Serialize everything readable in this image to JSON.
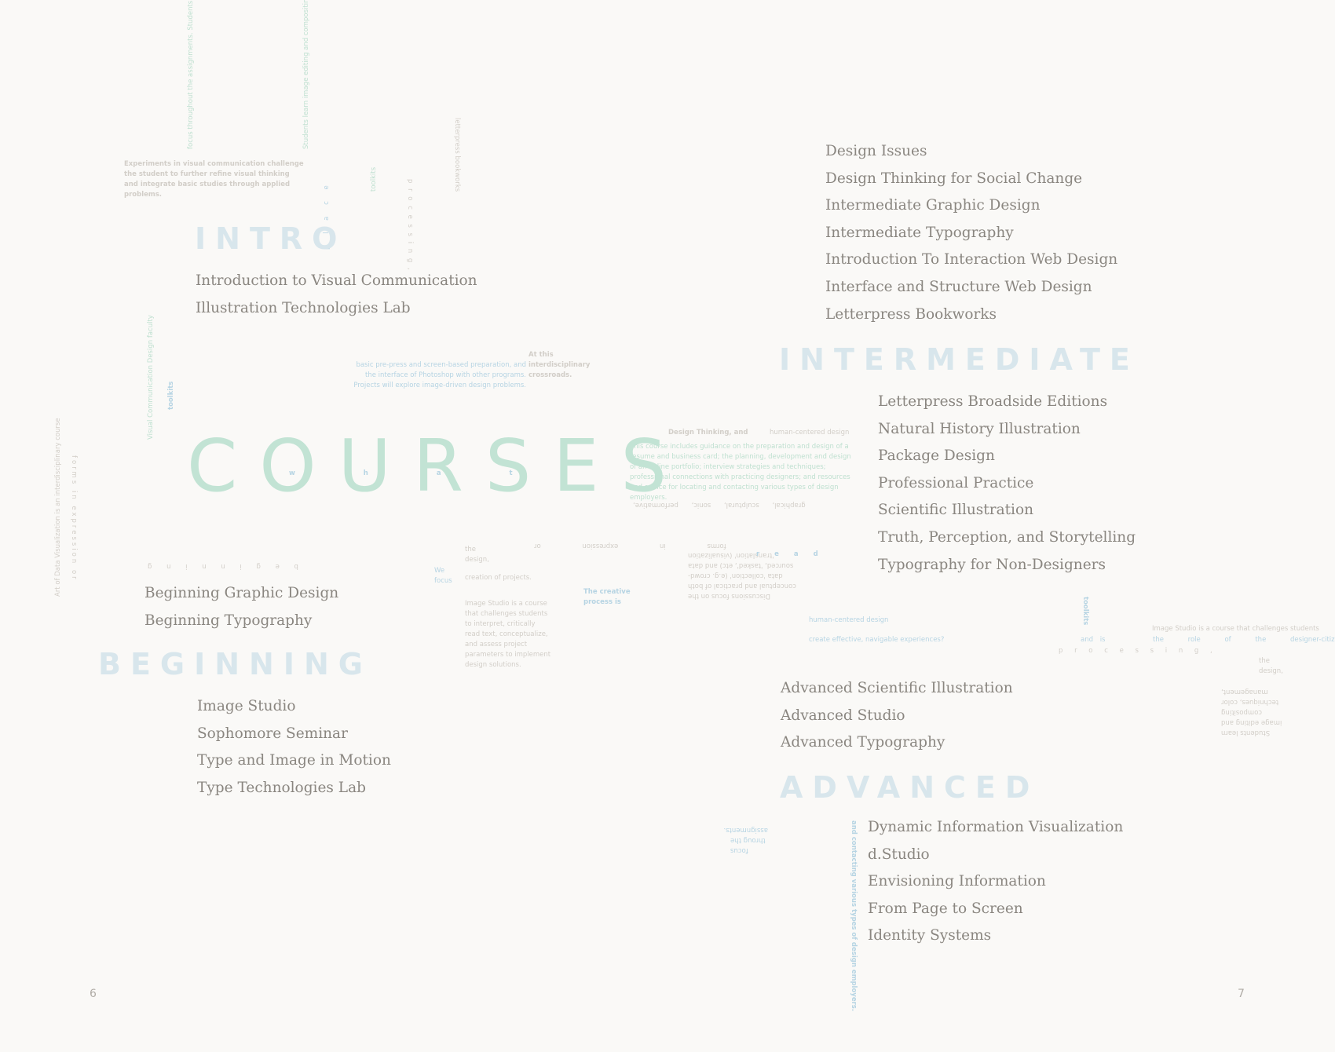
{
  "title": "COURSES",
  "sections": {
    "intro": {
      "heading": "INTRO",
      "courses": [
        "Introduction to Visual Communication",
        "Illustration Technologies Lab"
      ]
    },
    "beginning": {
      "heading": "BEGINNING",
      "courses_above": [
        "Beginning Graphic Design",
        "Beginning Typography"
      ],
      "courses_below": [
        "Image Studio",
        "Sophomore Seminar",
        "Type and Image in Motion",
        "Type Technologies Lab"
      ]
    },
    "intermediate": {
      "heading": "INTERMEDIATE",
      "courses_above": [
        "Design Issues",
        "Design Thinking for Social Change",
        "Intermediate Graphic Design",
        "Intermediate Typography",
        "Introduction To Interaction Web Design",
        "Interface and Structure Web Design",
        "Letterpress Bookworks"
      ],
      "courses_below": [
        "Letterpress Broadside Editions",
        "Natural History Illustration",
        "Package Design",
        "Professional Practice",
        "Scientific Illustration",
        "Truth, Perception, and Storytelling",
        "Typography for Non-Designers"
      ]
    },
    "advanced": {
      "heading": "ADVANCED",
      "courses_above": [
        "Advanced Scientific Illustration",
        "Advanced Studio",
        "Advanced Typography"
      ],
      "courses_below": [
        "Dynamic Information Visualization",
        "d.Studio",
        "Envisioning Information",
        "From Page to Screen",
        "Identity Systems"
      ]
    }
  },
  "page_numbers": {
    "left": "6",
    "right": "7"
  },
  "decorative_text": {
    "experiments": "Experiments in visual communication challenge the student to further refine visual thinking and integrate basic studies through applied problems.",
    "prepress": "basic pre-press and screen-based preparation, and the interface of Photoshop with other programs. Projects will explore image-driven design problems.",
    "at_this": "At this interdisciplinary crossroads.",
    "design_thinking": "Design Thinking, and",
    "human_centered": "human-centered design",
    "guidance": "This course includes guidance on the preparation and design of a resume and business card; the planning, development and design of an online portfolio; interview strategies and techniques; professional connections with practicing designers; and resources and advice for locating and contacting various types of design employers.",
    "media_list": "graphical, sculptural, sonic, performative,",
    "image_studio_short": "Image Studio is a course that challenges students to interpret, critically read text, conceptualize, and assess project parameters to implement design solutions.",
    "the_design": "the design,",
    "creation": "creation of projects.",
    "we_focus": "We focus",
    "creative_process": "The creative process is",
    "navigable": "create effective, navigable experiences?",
    "image_studio_long": "Image Studio is a course that challenges students",
    "designer_citizen": "the role of the designer-citizen?",
    "and_is": "and is",
    "toolkits": "toolkits",
    "process": "p r o c e s s i n g ,",
    "discussions": "Discussions focus on the conceptual and practical of both data 'collection' (e.g. crowd-sourced, 'tasked', etc) and data 'translation' (visualization",
    "forms": "forms in expression or",
    "art_of_data": "Art of Data Visualization is an interdisciplinary course",
    "vertical_focus": "focus throughout the assignments. Students learn image editing and compositing techniques, color management,",
    "employers_vertical": "and contacting various types of design employers.",
    "beginning_letters": "b e g i n n i n g",
    "what_letters": "w h a t",
    "read_letters": "r e a d",
    "place_letters": "p l a c e",
    "bookworks_vert": "letterpress bookworks",
    "vcd_faculty": "Visual Communication Design faculty",
    "focus_assignments": "focus throug the assignments.",
    "color_mgmt": "Students learn image editing and compositing techniques, color management,"
  }
}
